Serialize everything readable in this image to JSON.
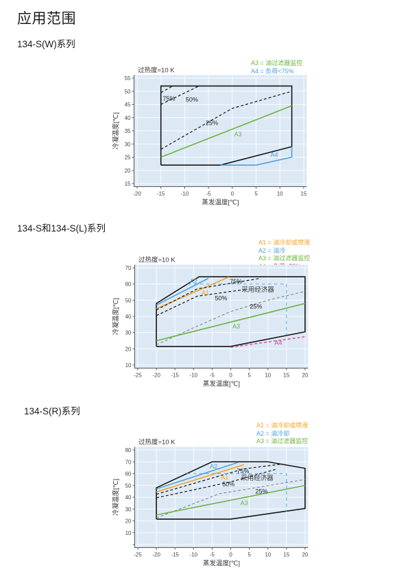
{
  "page": {
    "title": "应用范围"
  },
  "sections": [
    {
      "heading": "134-S(W)系列"
    },
    {
      "heading": "134-S和134-S(L)系列"
    },
    {
      "heading": "134-S(R)系列"
    }
  ],
  "chart_data": [
    {
      "type": "line",
      "title": "134-S(W)系列",
      "superheat_note": "过热度=10 K",
      "xlabel": "蒸发温度[℃]",
      "ylabel": "冷凝温度[℃]",
      "xlim": [
        -20,
        15
      ],
      "ylim": [
        15,
        55
      ],
      "xticks": [
        -20,
        -15,
        -10,
        -5,
        0,
        5,
        10,
        15
      ],
      "yticks": [
        15,
        20,
        25,
        30,
        35,
        40,
        45,
        50,
        55
      ],
      "grid": true,
      "plot_bg": "#dce9f5",
      "legend": [
        {
          "label": "A3 = 油过滤器监控",
          "color": "#6db33f"
        },
        {
          "label": "A4 = 负荷<75%",
          "color": "#4da0d8"
        }
      ],
      "lines": [
        {
          "name": "operating-envelope",
          "color": "#141414",
          "width": 1.6,
          "dash": null,
          "points": [
            [
              -15,
              22
            ],
            [
              -15,
              52
            ],
            [
              12.5,
              52
            ],
            [
              12.5,
              29
            ],
            [
              -2.5,
              22
            ],
            [
              -15,
              22
            ]
          ]
        },
        {
          "name": "load-75pct-curve",
          "color": "#141414",
          "width": 1.2,
          "dash": "4,3",
          "points": [
            [
              -15,
              49.5
            ],
            [
              -12.5,
              52
            ]
          ]
        },
        {
          "name": "load-50pct-curve",
          "color": "#141414",
          "width": 1.2,
          "dash": "4,3",
          "points": [
            [
              -15,
              45
            ],
            [
              -7,
              52
            ]
          ]
        },
        {
          "name": "load-25pct-curve",
          "color": "#141414",
          "width": 1.2,
          "dash": "4,3",
          "points": [
            [
              -15,
              28
            ],
            [
              0,
              43.5
            ],
            [
              12.5,
              50
            ]
          ]
        },
        {
          "name": "A3-oil-filter-monitoring-line",
          "color": "#6db33f",
          "width": 1.6,
          "dash": null,
          "points": [
            [
              -15,
              25
            ],
            [
              12.5,
              44.5
            ]
          ]
        },
        {
          "name": "A4-load-below-75pct-line",
          "color": "#4da0d8",
          "width": 1.6,
          "dash": null,
          "points": [
            [
              -2.5,
              22
            ],
            [
              5,
              22
            ],
            [
              12.5,
              25
            ],
            [
              12.5,
              29
            ]
          ]
        }
      ],
      "labels": [
        {
          "text": "75%",
          "x": -13.3,
          "y": 47.2,
          "color": "#222222"
        },
        {
          "text": "50%",
          "x": -8.5,
          "y": 46.9,
          "color": "#222222"
        },
        {
          "text": "25%",
          "x": -4.3,
          "y": 38.0,
          "color": "#222222"
        },
        {
          "text": "A3",
          "x": 1.2,
          "y": 33.8,
          "color": "#6db33f"
        },
        {
          "text": "A4",
          "x": 8.8,
          "y": 25.9,
          "color": "#4da0d8"
        }
      ]
    },
    {
      "type": "line",
      "title": "134-S和134-S(L)系列",
      "superheat_note": "过热度=10 K",
      "xlabel": "蒸发温度[℃]",
      "ylabel": "冷凝温度[℃]",
      "xlim": [
        -25,
        20
      ],
      "ylim": [
        10,
        70
      ],
      "xticks": [
        -25,
        -20,
        -15,
        -10,
        -5,
        0,
        5,
        10,
        15,
        20
      ],
      "yticks": [
        10,
        20,
        30,
        40,
        50,
        60,
        70
      ],
      "grid": true,
      "plot_bg": "#dce9f5",
      "legend": [
        {
          "label": "A1 = 油冷却或喷液",
          "color": "#f5a21f"
        },
        {
          "label": "A2 = 油冷",
          "color": "#4da0d8"
        },
        {
          "label": "A3 = 油过滤器监控",
          "color": "#6db33f"
        },
        {
          "label": "A4 = 负荷<75%",
          "color": "#e83a8e"
        }
      ],
      "lines": [
        {
          "name": "operating-envelope",
          "color": "#141414",
          "width": 1.6,
          "dash": null,
          "points": [
            [
              -20,
              21.5
            ],
            [
              -20,
              48
            ],
            [
              -8.5,
              64.5
            ],
            [
              20,
              64.5
            ],
            [
              20,
              30.5
            ],
            [
              0,
              21.5
            ],
            [
              -20,
              21.5
            ]
          ]
        },
        {
          "name": "A2-oil-cooling-line",
          "color": "#4da0d8",
          "width": 1.6,
          "dash": null,
          "points": [
            [
              -20,
              47
            ],
            [
              -6,
              63.5
            ]
          ]
        },
        {
          "name": "A1-oil-cooling-or-liquid-injection-line",
          "color": "#f5a21f",
          "width": 1.6,
          "dash": null,
          "points": [
            [
              -20,
              44.8
            ],
            [
              -0.5,
              64.3
            ]
          ]
        },
        {
          "name": "load-75pct-curve",
          "color": "#141414",
          "width": 1.2,
          "dash": "4,3",
          "points": [
            [
              -20,
              44
            ],
            [
              -9,
              57
            ],
            [
              8,
              63.5
            ]
          ]
        },
        {
          "name": "load-50pct-curve",
          "color": "#141414",
          "width": 1.2,
          "dash": "4,3",
          "points": [
            [
              -20,
              40.5
            ],
            [
              -9,
              52.5
            ],
            [
              3.5,
              56.5
            ]
          ]
        },
        {
          "name": "load-25pct-curve",
          "color": "#8c8c8c",
          "width": 1.2,
          "dash": "4,3",
          "points": [
            [
              -20,
              22.5
            ],
            [
              -10,
              33
            ],
            [
              0,
              43
            ],
            [
              10,
              50
            ],
            [
              20,
              55.5
            ]
          ]
        },
        {
          "name": "A3-oil-filter-monitoring-line",
          "color": "#6db33f",
          "width": 1.6,
          "dash": null,
          "points": [
            [
              -20,
              25
            ],
            [
              20,
              48
            ]
          ]
        },
        {
          "name": "A4-load-below-75pct-line",
          "color": "#e83a8e",
          "width": 1.4,
          "dash": "4,3",
          "points": [
            [
              0,
              21
            ],
            [
              20,
              27.5
            ]
          ]
        },
        {
          "name": "economizer-boundary",
          "color": "#79b1e0",
          "width": 1.2,
          "dash": "5,4",
          "points": [
            [
              -11.6,
              60
            ],
            [
              15,
              60
            ],
            [
              15,
              28.5
            ]
          ]
        }
      ],
      "labels": [
        {
          "text": "A2",
          "x": -10.0,
          "y": 61.8,
          "color": "#4da0d8"
        },
        {
          "text": "A1",
          "x": -6.8,
          "y": 54.6,
          "color": "#f5a21f"
        },
        {
          "text": "75%",
          "x": 1.4,
          "y": 61.6,
          "color": "#222222"
        },
        {
          "text": "50%",
          "x": -2.6,
          "y": 51.3,
          "color": "#222222"
        },
        {
          "text": "25%",
          "x": 6.8,
          "y": 46.1,
          "color": "#222222"
        },
        {
          "text": "采用经济器",
          "x": 7.3,
          "y": 56.6,
          "color": "#333333",
          "size": 9.5
        },
        {
          "text": "A3",
          "x": 1.5,
          "y": 34.0,
          "color": "#6db33f"
        },
        {
          "text": "A4",
          "x": 12.8,
          "y": 23.8,
          "color": "#e83a8e"
        }
      ]
    },
    {
      "type": "line",
      "title": "134-S(R)系列",
      "superheat_note": "过热度=10 K",
      "xlabel": "蒸发温度[℃]",
      "ylabel": "冷凝温度[℃]",
      "xlim": [
        -25,
        20
      ],
      "ylim": [
        0,
        80
      ],
      "xticks": [
        -25,
        -20,
        -15,
        -10,
        -5,
        0,
        5,
        10,
        15,
        20
      ],
      "yticks": [
        0,
        10,
        20,
        30,
        40,
        50,
        60,
        70,
        80
      ],
      "ytick_labels": [
        "",
        "10",
        "20",
        "30",
        "40",
        "50",
        "60",
        "70",
        "80"
      ],
      "grid": true,
      "plot_bg": "#dce9f5",
      "legend": [
        {
          "label": "A1 = 油冷却或喷液",
          "color": "#f5a21f"
        },
        {
          "label": "A2 = 油冷却",
          "color": "#4da0d8"
        },
        {
          "label": "A3 = 油过滤器监控",
          "color": "#6db33f"
        }
      ],
      "lines": [
        {
          "name": "operating-envelope",
          "color": "#141414",
          "width": 1.6,
          "dash": null,
          "points": [
            [
              -20,
              21.5
            ],
            [
              -20,
              48
            ],
            [
              -5,
              70
            ],
            [
              10,
              70
            ],
            [
              20,
              64.5
            ],
            [
              20,
              30.5
            ],
            [
              0,
              21.5
            ],
            [
              -20,
              21.5
            ]
          ]
        },
        {
          "name": "A2-oil-cooling-line",
          "color": "#4da0d8",
          "width": 1.6,
          "dash": null,
          "points": [
            [
              -20,
              47
            ],
            [
              2,
              69.5
            ]
          ]
        },
        {
          "name": "A1-oil-cooling-or-liquid-injection-line",
          "color": "#f5a21f",
          "width": 1.6,
          "dash": null,
          "points": [
            [
              -20,
              44.5
            ],
            [
              3.5,
              67.5
            ]
          ]
        },
        {
          "name": "load-75pct-curve",
          "color": "#141414",
          "width": 1.2,
          "dash": "4,3",
          "points": [
            [
              -20,
              42.5
            ],
            [
              3.5,
              64
            ],
            [
              13.5,
              68
            ]
          ]
        },
        {
          "name": "load-50pct-curve",
          "color": "#141414",
          "width": 1.2,
          "dash": "4,3",
          "points": [
            [
              -20,
              39.5
            ],
            [
              0,
              53
            ],
            [
              12,
              63.5
            ]
          ]
        },
        {
          "name": "load-25pct-curve",
          "color": "#8c8c8c",
          "width": 1.2,
          "dash": "4,3",
          "points": [
            [
              -20,
              22.5
            ],
            [
              -3,
              43
            ],
            [
              20,
              55
            ]
          ]
        },
        {
          "name": "A3-oil-filter-monitoring-line",
          "color": "#6db33f",
          "width": 1.6,
          "dash": null,
          "points": [
            [
              -20,
              25
            ],
            [
              20,
              50
            ]
          ]
        },
        {
          "name": "economizer-boundary",
          "color": "#79b1e0",
          "width": 1.2,
          "dash": "5,4",
          "points": [
            [
              -11.8,
              60
            ],
            [
              15,
              60
            ],
            [
              15,
              28
            ]
          ]
        }
      ],
      "labels": [
        {
          "text": "A2",
          "x": -4.6,
          "y": 66.3,
          "color": "#4da0d8"
        },
        {
          "text": "A1",
          "x": -1.6,
          "y": 57.0,
          "color": "#f5a21f"
        },
        {
          "text": "75%",
          "x": 3.3,
          "y": 62.2,
          "color": "#222222"
        },
        {
          "text": "50%",
          "x": -0.6,
          "y": 51.1,
          "color": "#222222"
        },
        {
          "text": "25%",
          "x": 8.3,
          "y": 45.1,
          "color": "#222222"
        },
        {
          "text": "采用经济器",
          "x": 7.1,
          "y": 56.4,
          "color": "#333333",
          "size": 9.5
        },
        {
          "text": "A3",
          "x": 3.6,
          "y": 35.1,
          "color": "#6db33f"
        }
      ]
    }
  ]
}
